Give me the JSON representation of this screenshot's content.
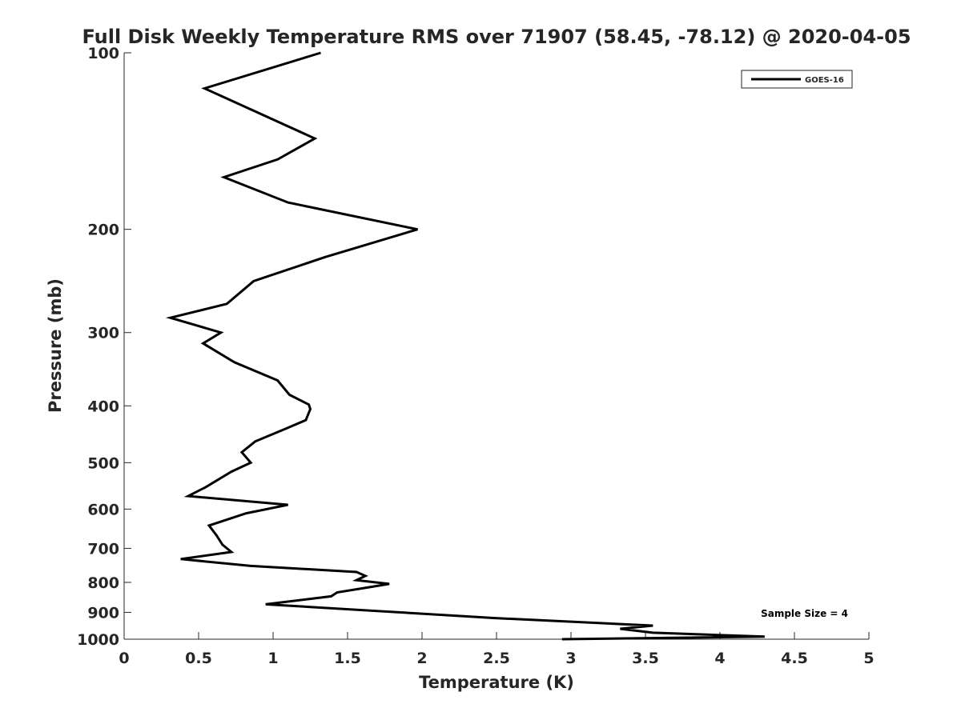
{
  "chart_data": {
    "type": "line",
    "title": "Full Disk Weekly Temperature RMS over 71907 (58.45, -78.12) @ 2020-04-05",
    "xlabel": "Temperature (K)",
    "ylabel": "Pressure (mb)",
    "xlim": [
      0,
      5
    ],
    "ylim": [
      100,
      1000
    ],
    "y_scale": "log",
    "y_reversed": true,
    "x_ticks": [
      0,
      0.5,
      1,
      1.5,
      2,
      2.5,
      3,
      3.5,
      4,
      4.5,
      5
    ],
    "x_tick_labels": [
      "0",
      "0.5",
      "1",
      "1.5",
      "2",
      "2.5",
      "3",
      "3.5",
      "4",
      "4.5",
      "5"
    ],
    "y_ticks": [
      100,
      200,
      300,
      400,
      500,
      600,
      700,
      800,
      900,
      1000
    ],
    "y_tick_labels": [
      "100",
      "200",
      "300",
      "400",
      "500",
      "600",
      "700",
      "800",
      "900",
      "1000"
    ],
    "grid": false,
    "legend_position": "top-right",
    "series": [
      {
        "name": "GOES-16",
        "color": "#000000",
        "x": [
          1.32,
          0.54,
          1.28,
          1.03,
          0.67,
          1.1,
          1.97,
          1.35,
          0.87,
          0.69,
          0.31,
          0.65,
          0.53,
          0.74,
          1.03,
          1.11,
          1.24,
          1.25,
          1.22,
          1.08,
          0.88,
          0.79,
          0.85,
          0.72,
          0.55,
          0.43,
          1.1,
          0.82,
          0.57,
          0.62,
          0.66,
          0.72,
          0.38,
          0.85,
          1.56,
          1.62,
          1.56,
          1.78,
          1.65,
          1.43,
          1.39,
          0.95,
          2.48,
          3.55,
          3.33,
          3.55,
          4.3,
          2.94
        ],
        "y": [
          100,
          115,
          140,
          152,
          163,
          180,
          200,
          223,
          245,
          268,
          283,
          300,
          313,
          337,
          362,
          383,
          398,
          405,
          423,
          438,
          460,
          480,
          500,
          518,
          550,
          570,
          590,
          610,
          640,
          665,
          690,
          710,
          730,
          750,
          768,
          780,
          793,
          805,
          815,
          832,
          845,
          872,
          920,
          948,
          960,
          975,
          990,
          1000
        ]
      }
    ],
    "annotations": [
      "Sample Size = 4"
    ]
  }
}
